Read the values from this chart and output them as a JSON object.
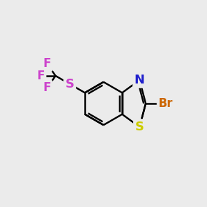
{
  "bg_color": "#ebebeb",
  "atom_colors": {
    "N": "#2020cc",
    "S_ring": "#cccc00",
    "S_thio": "#cc44cc",
    "Br": "#cc6600",
    "F": "#cc44cc"
  },
  "bond_color": "#000000",
  "bond_width": 1.8,
  "font_size_atom": 13
}
